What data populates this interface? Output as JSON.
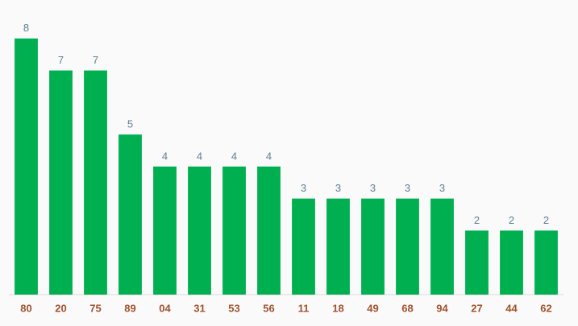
{
  "chart_data": {
    "type": "bar",
    "categories": [
      "80",
      "20",
      "75",
      "89",
      "04",
      "31",
      "53",
      "56",
      "11",
      "18",
      "49",
      "68",
      "94",
      "27",
      "44",
      "62"
    ],
    "values": [
      8,
      7,
      7,
      5,
      4,
      4,
      4,
      4,
      3,
      3,
      3,
      3,
      3,
      2,
      2,
      2
    ],
    "color": "#00b050",
    "ylim": [
      0,
      9
    ]
  }
}
